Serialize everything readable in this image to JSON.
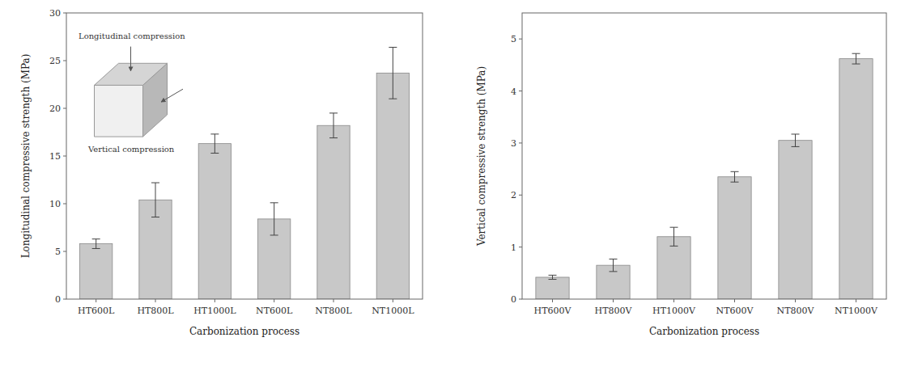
{
  "chart_data": [
    {
      "type": "bar",
      "categories": [
        "HT600L",
        "HT800L",
        "HT1000L",
        "NT600L",
        "NT800L",
        "NT1000L"
      ],
      "values": [
        5.8,
        10.4,
        16.3,
        8.4,
        18.2,
        23.7
      ],
      "errors": [
        0.5,
        1.8,
        1.0,
        1.7,
        1.3,
        2.7
      ],
      "y_label": "Longitudinal compressive strength (MPa)",
      "x_label": "Carbonization process",
      "ylim": [
        0,
        30
      ],
      "yticks": [
        0,
        5,
        10,
        15,
        20,
        25,
        30
      ],
      "color": "#c8c8c8",
      "grid": false,
      "annotations": [
        "Longitudinal compression",
        "Vertical compression"
      ]
    },
    {
      "type": "bar",
      "categories": [
        "HT600V",
        "HT800V",
        "HT1000V",
        "NT600V",
        "NT800V",
        "NT1000V"
      ],
      "values": [
        0.42,
        0.65,
        1.2,
        2.35,
        3.05,
        4.62
      ],
      "errors": [
        0.04,
        0.12,
        0.18,
        0.1,
        0.12,
        0.1
      ],
      "y_label": "Vertical compressive strength (MPa)",
      "x_label": "Carbonization process",
      "ylim": [
        0,
        5.5
      ],
      "yticks": [
        0,
        1,
        2,
        3,
        4,
        5
      ],
      "color": "#c8c8c8",
      "grid": false
    }
  ]
}
